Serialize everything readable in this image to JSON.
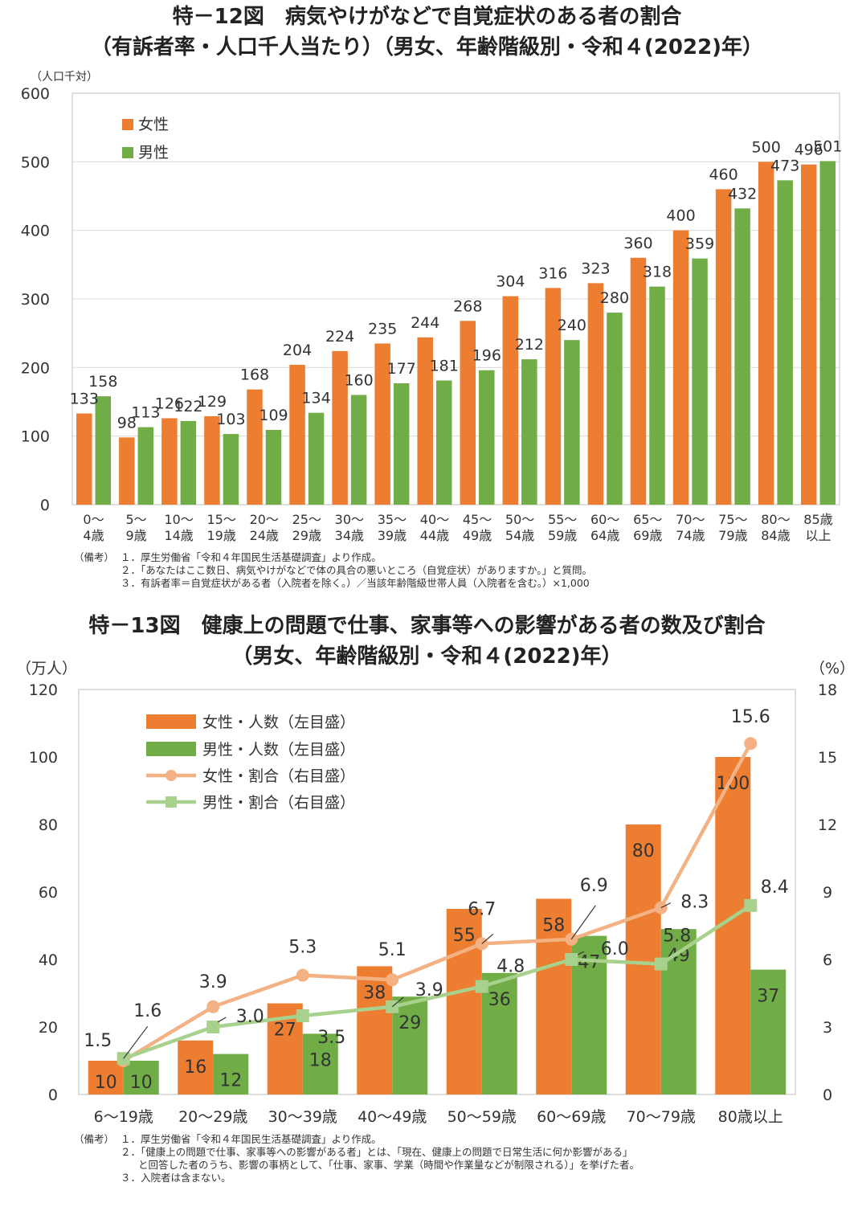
{
  "chart_data": [
    {
      "type": "bar",
      "title_line1": "特－12図　病気やけがなどで自覚症状のある者の割合",
      "title_line2": "（有訴者率・人口千人当たり）（男女、年齢階級別・令和４(2022)年）",
      "ylabel": "（人口千対）",
      "ylim": [
        0,
        600
      ],
      "yticks": [
        "0",
        "100",
        "200",
        "300",
        "400",
        "500",
        "600"
      ],
      "categories": [
        "0～\n4歳",
        "5～\n9歳",
        "10～\n14歳",
        "15～\n19歳",
        "20～\n24歳",
        "25～\n29歳",
        "30～\n34歳",
        "35～\n39歳",
        "40～\n44歳",
        "45～\n49歳",
        "50～\n54歳",
        "55～\n59歳",
        "60～\n64歳",
        "65～\n69歳",
        "70～\n74歳",
        "75～\n79歳",
        "80～\n84歳",
        "85歳\n以上"
      ],
      "legend_position": "top-left",
      "series": [
        {
          "name": "女性",
          "color": "#ED7D31",
          "values": [
            133,
            98,
            126,
            129,
            168,
            204,
            224,
            235,
            244,
            268,
            304,
            316,
            323,
            360,
            400,
            460,
            500,
            496
          ]
        },
        {
          "name": "男性",
          "color": "#70AD47",
          "values": [
            158,
            113,
            122,
            103,
            109,
            134,
            160,
            177,
            181,
            196,
            212,
            240,
            280,
            318,
            359,
            432,
            473,
            501
          ]
        }
      ],
      "notes": {
        "label": "（備考）",
        "items": [
          "１．厚生労働省「令和４年国民生活基礎調査」より作成。",
          "２．「あなたはここ数日、病気やけがなどで体の具合の悪いところ（自覚症状）がありますか。」と質問。",
          "３．有訴者率＝自覚症状がある者（入院者を除く。）／当該年齢階級世帯人員（入院者を含む。）×1,000"
        ]
      }
    },
    {
      "type": "bar+line",
      "title_line1": "特－13図　健康上の問題で仕事、家事等への影響がある者の数及び割合",
      "title_line2": "（男女、年齢階級別・令和４(2022)年）",
      "ylabel_left": "（万人）",
      "ylabel_right": "（%）",
      "ylim_left": [
        0,
        120
      ],
      "ylim_right": [
        0,
        18
      ],
      "yticks_left": [
        "0",
        "20",
        "40",
        "60",
        "80",
        "100",
        "120"
      ],
      "yticks_right": [
        "0",
        "3",
        "6",
        "9",
        "12",
        "15",
        "18"
      ],
      "categories": [
        "6～19歳",
        "20～29歳",
        "30～39歳",
        "40～49歳",
        "50～59歳",
        "60～69歳",
        "70～79歳",
        "80歳以上"
      ],
      "legend_position": "top-left",
      "bars": [
        {
          "name": "女性・人数（左目盛）",
          "color": "#ED7D31",
          "values": [
            10,
            16,
            27,
            38,
            55,
            58,
            80,
            100
          ]
        },
        {
          "name": "男性・人数（左目盛）",
          "color": "#70AD47",
          "values": [
            10,
            12,
            18,
            29,
            36,
            47,
            49,
            37
          ]
        }
      ],
      "lines": [
        {
          "name": "女性・割合（右目盛）",
          "color": "#F4B183",
          "marker": "circle",
          "values": [
            1.5,
            3.9,
            5.3,
            5.1,
            6.7,
            6.9,
            8.3,
            15.6
          ]
        },
        {
          "name": "男性・割合（右目盛）",
          "color": "#A9D18E",
          "marker": "square",
          "values": [
            1.6,
            3.0,
            3.5,
            3.9,
            4.8,
            6.0,
            5.8,
            8.4
          ]
        }
      ],
      "notes": {
        "label": "（備考）",
        "items": [
          "１．厚生労働省「令和４年国民生活基礎調査」より作成。",
          "２．「健康上の問題で仕事、家事等への影響がある者」とは、「現在、健康上の問題で日常生活に何か影響がある」",
          "と回答した者のうち、影響の事柄として、「仕事、家事、学業（時間や作業量などが制限される）」を挙げた者。",
          "３．入院者は含まない。"
        ]
      }
    }
  ]
}
